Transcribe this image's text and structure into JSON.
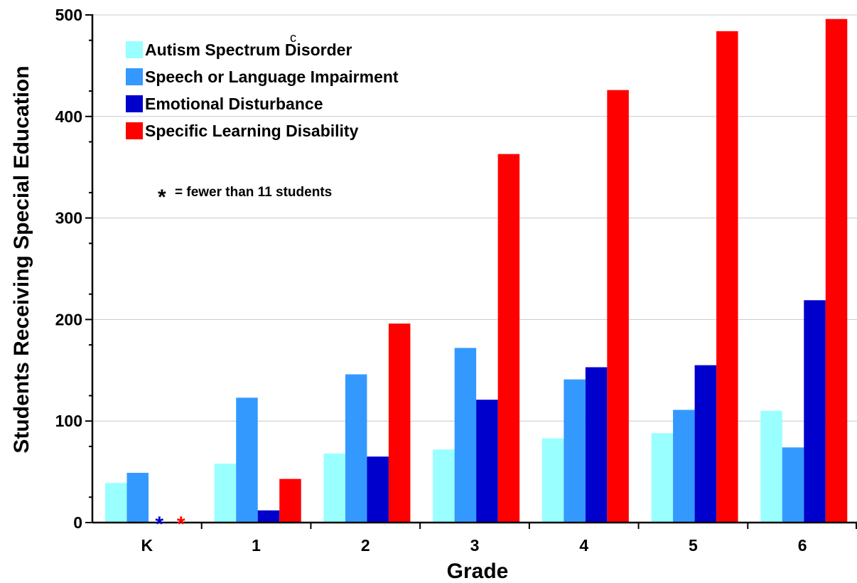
{
  "chart_data": {
    "type": "bar",
    "xlabel": "Grade",
    "ylabel": "Students Receiving Special Education",
    "ylim": [
      0,
      500
    ],
    "yticks": [
      "0",
      "100",
      "200",
      "300",
      "400",
      "500"
    ],
    "categories": [
      "K",
      "1",
      "2",
      "3",
      "4",
      "5",
      "6"
    ],
    "grid": true,
    "legend_position": "top-left",
    "series": [
      {
        "name": "Autism Spectrum Disorder",
        "color": "#99FFFF",
        "values": [
          39,
          58,
          68,
          72,
          83,
          88,
          110
        ]
      },
      {
        "name": "Speech or Language Impairment",
        "color": "#3399FF",
        "values": [
          49,
          123,
          146,
          172,
          141,
          111,
          74
        ]
      },
      {
        "name": "Emotional Disturbance",
        "color": "#0000CC",
        "values": [
          null,
          12,
          65,
          121,
          153,
          155,
          219
        ]
      },
      {
        "name": "Specific Learning Disability",
        "color": "#FF0000",
        "values": [
          null,
          43,
          196,
          363,
          426,
          484,
          496
        ]
      }
    ],
    "suppressed_marker": "*",
    "suppressed_points": [
      {
        "category": "K",
        "series": 2,
        "color": "#0000CC"
      },
      {
        "category": "K",
        "series": 3,
        "color": "#FF0000"
      }
    ],
    "note": "= fewer than 11 students",
    "stray_glyph": "c"
  }
}
